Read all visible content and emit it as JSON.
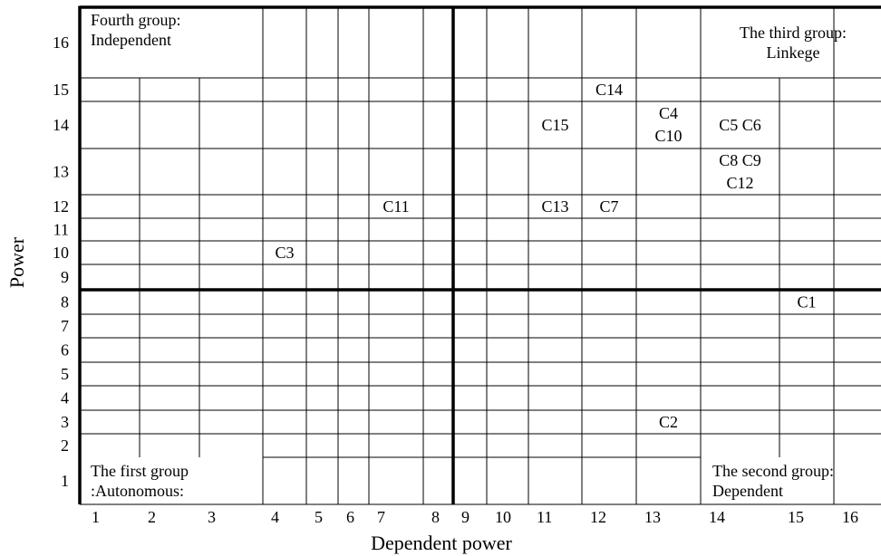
{
  "chart_data": {
    "type": "table",
    "xlabel": "Dependent power",
    "ylabel": "Power",
    "x_ticks": [
      "1",
      "2",
      "3",
      "4",
      "5",
      "6",
      "7",
      "8",
      "9",
      "10",
      "11",
      "12",
      "13",
      "14",
      "15",
      "16"
    ],
    "y_ticks": [
      "1",
      "2",
      "3",
      "4",
      "5",
      "6",
      "7",
      "8",
      "9",
      "10",
      "11",
      "12",
      "13",
      "14",
      "15",
      "16"
    ],
    "xlim": [
      1,
      16
    ],
    "ylim": [
      1,
      16
    ],
    "quadrant_divider": {
      "x": 8.5,
      "y": 8.5
    },
    "points": [
      {
        "label": "C1",
        "x": 15,
        "y": 8
      },
      {
        "label": "C2",
        "x": 13,
        "y": 3
      },
      {
        "label": "C3",
        "x": 4,
        "y": 10
      },
      {
        "label": "C4",
        "x": 13,
        "y": 14
      },
      {
        "label": "C5",
        "x": 14,
        "y": 14
      },
      {
        "label": "C6",
        "x": 14,
        "y": 14
      },
      {
        "label": "C7",
        "x": 12,
        "y": 12
      },
      {
        "label": "C8",
        "x": 14,
        "y": 13
      },
      {
        "label": "C9",
        "x": 14,
        "y": 13
      },
      {
        "label": "C10",
        "x": 13,
        "y": 14
      },
      {
        "label": "C11",
        "x": 7,
        "y": 12
      },
      {
        "label": "C12",
        "x": 14,
        "y": 13
      },
      {
        "label": "C13",
        "x": 11,
        "y": 12
      },
      {
        "label": "C14",
        "x": 12,
        "y": 15
      },
      {
        "label": "C15",
        "x": 11,
        "y": 14
      }
    ],
    "cell_labels": [
      {
        "col": 13,
        "row": 14,
        "lines": [
          "C4",
          "C10"
        ]
      },
      {
        "col": 14,
        "row": 14,
        "lines": [
          "C5 C6"
        ]
      },
      {
        "col": 14,
        "row": 13,
        "lines": [
          "C8 C9",
          "C12"
        ]
      }
    ],
    "groups": [
      {
        "quadrant": "top-left",
        "lines": [
          "Fourth group:",
          "Independent"
        ]
      },
      {
        "quadrant": "top-right",
        "lines": [
          "The third group:",
          "Linkege"
        ]
      },
      {
        "quadrant": "bottom-left",
        "lines": [
          "The first group",
          ":Autonomous:"
        ]
      },
      {
        "quadrant": "bottom-right",
        "lines": [
          "The second group:",
          "Dependent"
        ]
      }
    ]
  }
}
